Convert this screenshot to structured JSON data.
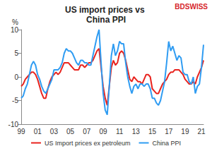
{
  "chart_data": {
    "type": "line",
    "title": "US import prices vs China PPI",
    "y_label": "%",
    "annotations": [
      "BDSWISS"
    ],
    "categories": [
      "99",
      null,
      null,
      null,
      null,
      null,
      null,
      null,
      "01",
      null,
      null,
      null,
      null,
      null,
      null,
      null,
      "03",
      null,
      null,
      null,
      null,
      null,
      null,
      null,
      "05",
      null,
      null,
      null,
      null,
      null,
      null,
      null,
      "07",
      null,
      null,
      null,
      null,
      null,
      null,
      null,
      "09",
      null,
      null,
      null,
      null,
      null,
      null,
      null,
      "11",
      null,
      null,
      null,
      null,
      null,
      null,
      null,
      "13",
      null,
      null,
      null,
      null,
      null,
      null,
      null,
      "15",
      null,
      null,
      null,
      null,
      null,
      null,
      null,
      "17",
      null,
      null,
      null,
      null,
      null,
      null,
      null,
      "19",
      null,
      null,
      null,
      null,
      null,
      null,
      null,
      "21",
      null
    ],
    "series": [
      {
        "name": "US Import prices ex petroleum",
        "color": "#e8231e",
        "values": [
          -2.0,
          -1.5,
          -0.5,
          0.0,
          0.5,
          1.0,
          1.0,
          0.5,
          -0.5,
          -2.0,
          -3.5,
          -4.5,
          -4.5,
          -2.5,
          -1.0,
          0.0,
          0.5,
          1.0,
          0.5,
          1.0,
          2.0,
          3.0,
          3.0,
          3.0,
          2.5,
          2.0,
          1.5,
          1.5,
          1.5,
          2.5,
          2.5,
          2.0,
          2.5,
          3.0,
          3.0,
          3.5,
          4.5,
          5.5,
          6.0,
          2.0,
          -2.0,
          -4.5,
          -6.0,
          -2.0,
          2.0,
          3.5,
          2.5,
          3.0,
          5.0,
          5.5,
          5.0,
          3.5,
          1.5,
          -0.5,
          -1.0,
          0.0,
          -0.5,
          -1.0,
          -1.0,
          -1.5,
          -0.5,
          0.5,
          0.5,
          0.0,
          -2.5,
          -3.0,
          -3.5,
          -3.5,
          -2.5,
          -1.5,
          -1.0,
          -0.5,
          0.5,
          1.0,
          1.0,
          1.5,
          1.5,
          1.5,
          1.0,
          0.5,
          -0.5,
          -1.0,
          -1.5,
          -1.5,
          -1.0,
          -1.5,
          0.0,
          1.0,
          2.0,
          3.5
        ]
      },
      {
        "name": "China PPI",
        "color": "#2f9cf2",
        "values": [
          -4.5,
          -4.0,
          -2.5,
          -1.5,
          0.5,
          2.5,
          3.3,
          2.5,
          0.5,
          -0.5,
          -2.0,
          -3.0,
          -3.5,
          -2.5,
          -1.5,
          -0.5,
          1.5,
          1.5,
          1.5,
          2.0,
          3.0,
          5.0,
          6.0,
          5.5,
          5.5,
          5.0,
          4.0,
          3.0,
          2.5,
          3.5,
          3.5,
          3.0,
          3.0,
          2.5,
          2.5,
          4.5,
          6.5,
          8.5,
          10.0,
          3.0,
          -3.5,
          -7.0,
          -8.0,
          -2.0,
          4.5,
          7.0,
          4.5,
          5.5,
          7.5,
          7.0,
          7.0,
          3.0,
          0.0,
          -2.0,
          -3.5,
          -2.0,
          -1.5,
          -2.5,
          -1.5,
          -1.5,
          -2.0,
          -1.5,
          -1.5,
          -2.5,
          -4.5,
          -4.5,
          -5.5,
          -6.0,
          -5.0,
          -3.0,
          -1.0,
          3.0,
          7.5,
          5.5,
          6.5,
          5.0,
          3.5,
          4.5,
          4.0,
          1.0,
          0.5,
          0.5,
          -1.0,
          -1.5,
          0.0,
          -3.5,
          -2.0,
          -1.5,
          2.0,
          6.8
        ]
      }
    ],
    "ylim": [
      -10,
      10
    ],
    "yticks": [
      -10,
      -5,
      0,
      5,
      10
    ],
    "grid": false,
    "legend": "bottom"
  }
}
